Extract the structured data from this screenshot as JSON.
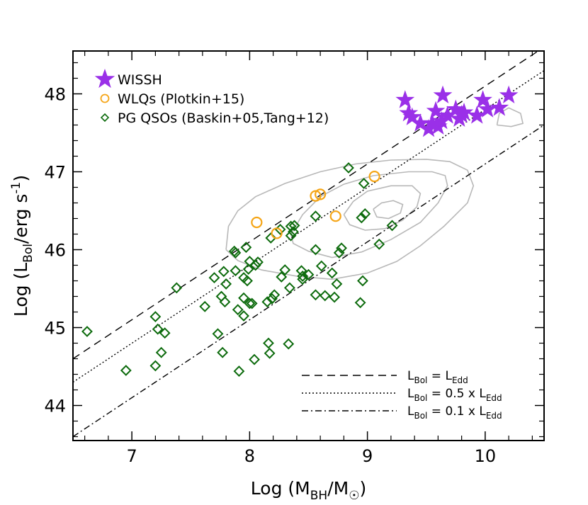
{
  "chart_data": {
    "type": "scatter",
    "xlabel": "Log (M_BH/M_☉)",
    "ylabel": "Log (L_Bol/erg s^-1)",
    "xlim": [
      6.5,
      10.5
    ],
    "ylim": [
      43.55,
      48.55
    ],
    "xticks": [
      7,
      8,
      9,
      10
    ],
    "yticks": [
      44,
      45,
      46,
      47,
      48
    ],
    "series": [
      {
        "name": "WISSH",
        "marker": "star",
        "color": "#9a30e8",
        "points": [
          [
            9.32,
            47.92
          ],
          [
            9.35,
            47.75
          ],
          [
            9.38,
            47.7
          ],
          [
            9.45,
            47.62
          ],
          [
            9.52,
            47.55
          ],
          [
            9.55,
            47.62
          ],
          [
            9.58,
            47.78
          ],
          [
            9.6,
            47.58
          ],
          [
            9.63,
            47.65
          ],
          [
            9.64,
            47.98
          ],
          [
            9.68,
            47.72
          ],
          [
            9.75,
            47.8
          ],
          [
            9.78,
            47.68
          ],
          [
            9.8,
            47.73
          ],
          [
            9.82,
            47.76
          ],
          [
            9.93,
            47.72
          ],
          [
            9.98,
            47.92
          ],
          [
            10.02,
            47.8
          ],
          [
            10.12,
            47.82
          ],
          [
            10.2,
            47.98
          ]
        ]
      },
      {
        "name": "WLQs (Plotkin+15)",
        "marker": "circle",
        "color": "#f5a516",
        "points": [
          [
            8.06,
            46.35
          ],
          [
            8.23,
            46.21
          ],
          [
            8.56,
            46.69
          ],
          [
            8.6,
            46.71
          ],
          [
            8.73,
            46.43
          ],
          [
            9.06,
            46.94
          ]
        ]
      },
      {
        "name": "PG QSOs (Baskin+05,Tang+12)",
        "marker": "diamond",
        "color": "#0d6b0d",
        "points": [
          [
            6.62,
            44.95
          ],
          [
            6.95,
            44.45
          ],
          [
            7.2,
            44.51
          ],
          [
            7.2,
            45.14
          ],
          [
            7.22,
            44.98
          ],
          [
            7.25,
            44.68
          ],
          [
            7.28,
            44.93
          ],
          [
            7.38,
            45.51
          ],
          [
            7.62,
            45.27
          ],
          [
            7.7,
            45.64
          ],
          [
            7.73,
            44.92
          ],
          [
            7.76,
            45.4
          ],
          [
            7.77,
            44.68
          ],
          [
            7.78,
            45.72
          ],
          [
            7.79,
            45.33
          ],
          [
            7.8,
            45.56
          ],
          [
            7.87,
            45.98
          ],
          [
            7.88,
            45.96
          ],
          [
            7.88,
            45.73
          ],
          [
            7.9,
            45.23
          ],
          [
            7.91,
            44.44
          ],
          [
            7.95,
            45.64
          ],
          [
            7.95,
            45.38
          ],
          [
            7.95,
            45.15
          ],
          [
            7.97,
            46.03
          ],
          [
            7.98,
            45.6
          ],
          [
            7.99,
            45.75
          ],
          [
            8.0,
            45.31
          ],
          [
            8.0,
            45.85
          ],
          [
            8.02,
            45.31
          ],
          [
            8.04,
            44.59
          ],
          [
            8.05,
            45.8
          ],
          [
            8.07,
            45.84
          ],
          [
            8.15,
            45.33
          ],
          [
            8.16,
            44.8
          ],
          [
            8.17,
            44.67
          ],
          [
            8.18,
            46.15
          ],
          [
            8.19,
            45.37
          ],
          [
            8.21,
            45.42
          ],
          [
            8.26,
            46.26
          ],
          [
            8.27,
            45.65
          ],
          [
            8.3,
            45.74
          ],
          [
            8.33,
            44.79
          ],
          [
            8.34,
            45.51
          ],
          [
            8.35,
            46.3
          ],
          [
            8.35,
            46.18
          ],
          [
            8.37,
            46.23
          ],
          [
            8.38,
            46.31
          ],
          [
            8.45,
            45.66
          ],
          [
            8.44,
            45.73
          ],
          [
            8.45,
            45.62
          ],
          [
            8.5,
            45.68
          ],
          [
            8.56,
            46.43
          ],
          [
            8.56,
            46.0
          ],
          [
            8.56,
            45.42
          ],
          [
            8.61,
            45.79
          ],
          [
            8.64,
            45.41
          ],
          [
            8.7,
            45.7
          ],
          [
            8.72,
            45.39
          ],
          [
            8.74,
            45.56
          ],
          [
            8.76,
            45.96
          ],
          [
            8.78,
            46.02
          ],
          [
            8.84,
            47.05
          ],
          [
            8.94,
            45.32
          ],
          [
            8.95,
            46.41
          ],
          [
            8.96,
            45.6
          ],
          [
            8.97,
            46.85
          ],
          [
            8.98,
            46.46
          ],
          [
            9.1,
            46.07
          ],
          [
            9.21,
            46.31
          ]
        ]
      }
    ],
    "reference_lines": [
      {
        "label_main": "L",
        "label_sub": "Bol",
        "label_mid": " = L",
        "label_sub2": "Edd",
        "label_tail": "",
        "style": "dashed",
        "ratio": 1.0
      },
      {
        "label_main": "L",
        "label_sub": "Bol",
        "label_mid": " = 0.5 x L",
        "label_sub2": "Edd",
        "label_tail": "",
        "style": "dotted",
        "ratio": 0.5
      },
      {
        "label_main": "L",
        "label_sub": "Bol",
        "label_mid": " = 0.1 x L",
        "label_sub2": "Edd",
        "label_tail": "",
        "style": "dashdot",
        "ratio": 0.1
      }
    ],
    "reference_intercept": 38.1,
    "contour_color": "#b8b8b8",
    "contours": [
      [
        [
          7.8,
          46.0
        ],
        [
          7.82,
          46.3
        ],
        [
          7.9,
          46.5
        ],
        [
          8.05,
          46.68
        ],
        [
          8.3,
          46.85
        ],
        [
          8.6,
          47.0
        ],
        [
          8.9,
          47.1
        ],
        [
          9.2,
          47.15
        ],
        [
          9.5,
          47.16
        ],
        [
          9.7,
          47.13
        ],
        [
          9.85,
          47.02
        ],
        [
          9.9,
          46.82
        ],
        [
          9.85,
          46.6
        ],
        [
          9.65,
          46.3
        ],
        [
          9.45,
          46.05
        ],
        [
          9.25,
          45.85
        ],
        [
          9.0,
          45.7
        ],
        [
          8.7,
          45.62
        ],
        [
          8.4,
          45.66
        ],
        [
          8.1,
          45.74
        ],
        [
          7.9,
          45.86
        ],
        [
          7.8,
          46.0
        ]
      ],
      [
        [
          8.35,
          46.2
        ],
        [
          8.45,
          46.45
        ],
        [
          8.6,
          46.68
        ],
        [
          8.8,
          46.84
        ],
        [
          9.05,
          46.95
        ],
        [
          9.35,
          47.0
        ],
        [
          9.55,
          47.0
        ],
        [
          9.66,
          46.95
        ],
        [
          9.68,
          46.82
        ],
        [
          9.6,
          46.6
        ],
        [
          9.45,
          46.35
        ],
        [
          9.2,
          46.13
        ],
        [
          8.95,
          45.97
        ],
        [
          8.7,
          45.9
        ],
        [
          8.5,
          45.98
        ],
        [
          8.37,
          46.08
        ],
        [
          8.35,
          46.2
        ]
      ],
      [
        [
          8.8,
          46.45
        ],
        [
          8.88,
          46.62
        ],
        [
          9.0,
          46.75
        ],
        [
          9.2,
          46.82
        ],
        [
          9.38,
          46.82
        ],
        [
          9.45,
          46.72
        ],
        [
          9.42,
          46.55
        ],
        [
          9.3,
          46.38
        ],
        [
          9.15,
          46.27
        ],
        [
          8.98,
          46.25
        ],
        [
          8.85,
          46.32
        ],
        [
          8.8,
          46.45
        ]
      ],
      [
        [
          9.05,
          46.52
        ],
        [
          9.12,
          46.6
        ],
        [
          9.22,
          46.63
        ],
        [
          9.3,
          46.58
        ],
        [
          9.28,
          46.47
        ],
        [
          9.18,
          46.4
        ],
        [
          9.08,
          46.42
        ],
        [
          9.05,
          46.52
        ]
      ],
      [
        [
          10.1,
          47.6
        ],
        [
          10.12,
          47.75
        ],
        [
          10.2,
          47.82
        ],
        [
          10.3,
          47.75
        ],
        [
          10.32,
          47.62
        ],
        [
          10.22,
          47.58
        ],
        [
          10.1,
          47.6
        ]
      ]
    ]
  }
}
